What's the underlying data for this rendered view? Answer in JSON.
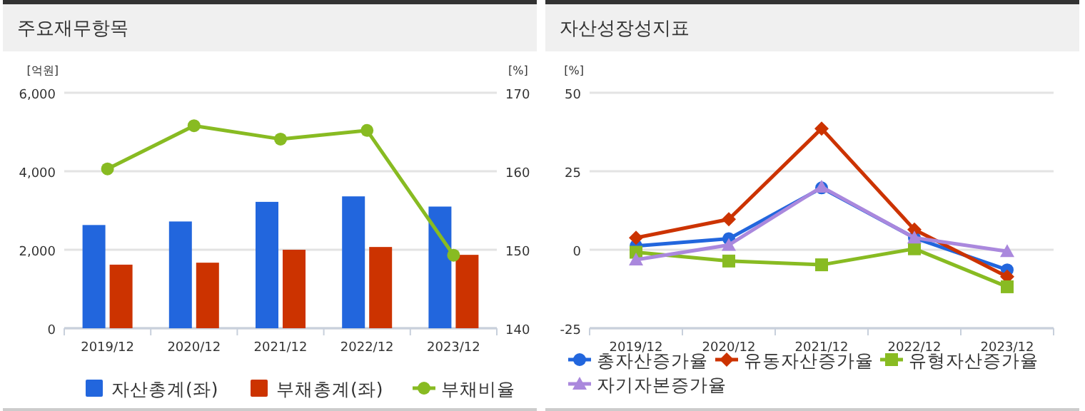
{
  "chart_data": [
    {
      "type": "bar",
      "title": "주요재무항목",
      "ylabel": "[억원]",
      "y2label": "[%]",
      "categories": [
        "2019/12",
        "2020/12",
        "2021/12",
        "2022/12",
        "2023/12"
      ],
      "series": [
        {
          "name": "자산총계(좌)",
          "color": "#2266dd",
          "values": [
            2630,
            2720,
            3220,
            3360,
            3100
          ]
        },
        {
          "name": "부채총계(좌)",
          "color": "#cc3300",
          "values": [
            1620,
            1670,
            2000,
            2070,
            1870
          ]
        },
        {
          "name": "부채비율",
          "type": "line",
          "axis": "y2",
          "marker": "circle",
          "color": "#88bb22",
          "values": [
            160.3,
            165.8,
            164.1,
            165.2,
            149.3
          ]
        }
      ],
      "ylim": [
        0,
        6000
      ],
      "yticks": [
        0,
        {
          "value": 2000,
          "label": "2,000"
        },
        {
          "value": 4000,
          "label": "4,000"
        },
        {
          "value": 6000,
          "label": "6,000"
        }
      ],
      "y2lim": [
        140,
        170
      ],
      "y2ticks": [
        140,
        150,
        160,
        170
      ],
      "grid": "y",
      "legend": "bottom"
    },
    {
      "type": "line",
      "title": "자산성장성지표",
      "ylabel": "[%]",
      "categories": [
        "2019/12",
        "2020/12",
        "2021/12",
        "2022/12",
        "2023/12"
      ],
      "series": [
        {
          "name": "총자산증가율",
          "marker": "circle",
          "color": "#2266dd",
          "values": [
            1.2,
            3.5,
            19.7,
            3.8,
            -6.4
          ]
        },
        {
          "name": "유동자산증가율",
          "marker": "diamond",
          "color": "#cc3300",
          "values": [
            3.8,
            9.7,
            38.6,
            6.4,
            -8.6
          ]
        },
        {
          "name": "유형자산증가율",
          "marker": "square",
          "color": "#88bb22",
          "values": [
            -0.8,
            -3.6,
            -4.8,
            0.3,
            -11.8
          ]
        },
        {
          "name": "자기자본증가율",
          "marker": "triangle",
          "color": "#aa88dd",
          "values": [
            -3.2,
            1.5,
            20,
            3.8,
            -0.5
          ]
        }
      ],
      "ylim": [
        -25,
        50
      ],
      "yticks": [
        -25,
        0,
        25,
        50
      ],
      "grid": "y",
      "legend": "bottom"
    }
  ]
}
